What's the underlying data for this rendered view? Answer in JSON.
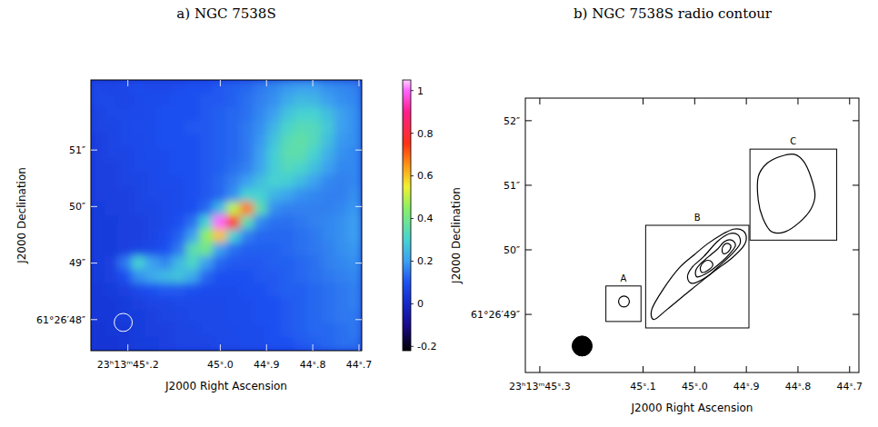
{
  "chart_data": [
    {
      "type": "heatmap",
      "title": "a) NGC 7538S",
      "xlabel": "J2000 Right Ascension",
      "ylabel": "J2000 Declination",
      "xlim": [
        45.28,
        44.694
      ],
      "ylim": [
        47.45,
        52.24
      ],
      "xticks": [
        {
          "value": 45.2,
          "label": "23ʰ13ᵐ45ˢ.2"
        },
        {
          "value": 45.0,
          "label": "45ˢ.0"
        },
        {
          "value": 44.9,
          "label": "44ˢ.9"
        },
        {
          "value": 44.8,
          "label": "44ˢ.8"
        },
        {
          "value": 44.7,
          "label": "44ˢ.7"
        }
      ],
      "yticks": [
        {
          "value": 51,
          "label": "51″"
        },
        {
          "value": 50,
          "label": "50″"
        },
        {
          "value": 49,
          "label": "49″"
        },
        {
          "value": 48,
          "label": "61°26′48″"
        }
      ],
      "cells": [
        [
          0.08,
          0.07,
          0.08,
          0.09,
          0.08,
          0.08,
          0.09,
          0.1,
          0.1,
          0.11,
          0.12,
          0.13,
          0.15,
          0.17,
          0.19,
          0.2,
          0.2,
          0.18,
          0.17,
          0.16
        ],
        [
          0.08,
          0.08,
          0.07,
          0.08,
          0.09,
          0.09,
          0.1,
          0.1,
          0.11,
          0.11,
          0.12,
          0.14,
          0.16,
          0.18,
          0.22,
          0.25,
          0.24,
          0.2,
          0.18,
          0.17
        ],
        [
          0.07,
          0.08,
          0.08,
          0.08,
          0.09,
          0.1,
          0.1,
          0.1,
          0.11,
          0.12,
          0.13,
          0.14,
          0.17,
          0.2,
          0.27,
          0.3,
          0.3,
          0.26,
          0.2,
          0.18
        ],
        [
          0.07,
          0.07,
          0.08,
          0.09,
          0.09,
          0.1,
          0.1,
          0.11,
          0.11,
          0.12,
          0.13,
          0.15,
          0.18,
          0.24,
          0.31,
          0.34,
          0.33,
          0.28,
          0.2,
          0.18
        ],
        [
          0.06,
          0.07,
          0.08,
          0.08,
          0.09,
          0.1,
          0.1,
          0.1,
          0.11,
          0.12,
          0.13,
          0.15,
          0.19,
          0.27,
          0.34,
          0.36,
          0.33,
          0.26,
          0.19,
          0.18
        ],
        [
          0.06,
          0.07,
          0.07,
          0.08,
          0.09,
          0.09,
          0.1,
          0.1,
          0.11,
          0.12,
          0.13,
          0.15,
          0.2,
          0.29,
          0.35,
          0.35,
          0.3,
          0.23,
          0.18,
          0.17
        ],
        [
          0.06,
          0.06,
          0.07,
          0.08,
          0.08,
          0.09,
          0.1,
          0.1,
          0.11,
          0.12,
          0.14,
          0.16,
          0.21,
          0.29,
          0.33,
          0.31,
          0.26,
          0.2,
          0.17,
          0.17
        ],
        [
          0.06,
          0.06,
          0.07,
          0.07,
          0.08,
          0.09,
          0.09,
          0.1,
          0.11,
          0.13,
          0.16,
          0.2,
          0.26,
          0.3,
          0.29,
          0.25,
          0.2,
          0.17,
          0.16,
          0.17
        ],
        [
          0.06,
          0.06,
          0.06,
          0.07,
          0.08,
          0.08,
          0.09,
          0.1,
          0.11,
          0.13,
          0.18,
          0.3,
          0.3,
          0.24,
          0.21,
          0.18,
          0.17,
          0.16,
          0.16,
          0.18
        ],
        [
          0.05,
          0.06,
          0.06,
          0.07,
          0.07,
          0.08,
          0.09,
          0.1,
          0.13,
          0.25,
          0.5,
          0.68,
          0.35,
          0.18,
          0.16,
          0.16,
          0.16,
          0.16,
          0.17,
          0.19
        ],
        [
          0.05,
          0.05,
          0.06,
          0.06,
          0.07,
          0.08,
          0.1,
          0.14,
          0.3,
          1.0,
          0.75,
          0.35,
          0.17,
          0.14,
          0.14,
          0.15,
          0.16,
          0.17,
          0.18,
          0.2
        ],
        [
          0.05,
          0.05,
          0.06,
          0.06,
          0.07,
          0.09,
          0.12,
          0.2,
          0.45,
          0.6,
          0.3,
          0.16,
          0.13,
          0.13,
          0.13,
          0.14,
          0.15,
          0.17,
          0.18,
          0.2
        ],
        [
          0.05,
          0.05,
          0.06,
          0.07,
          0.08,
          0.1,
          0.15,
          0.35,
          0.4,
          0.2,
          0.14,
          0.12,
          0.12,
          0.12,
          0.13,
          0.14,
          0.15,
          0.16,
          0.18,
          0.19
        ],
        [
          0.05,
          0.06,
          0.15,
          0.3,
          0.2,
          0.17,
          0.25,
          0.32,
          0.2,
          0.13,
          0.11,
          0.11,
          0.11,
          0.12,
          0.12,
          0.13,
          0.14,
          0.16,
          0.17,
          0.18
        ],
        [
          0.05,
          0.06,
          0.1,
          0.18,
          0.22,
          0.25,
          0.27,
          0.22,
          0.13,
          0.1,
          0.1,
          0.1,
          0.11,
          0.11,
          0.12,
          0.13,
          0.14,
          0.15,
          0.16,
          0.17
        ],
        [
          0.04,
          0.05,
          0.06,
          0.08,
          0.1,
          0.11,
          0.11,
          0.1,
          0.09,
          0.09,
          0.09,
          0.1,
          0.1,
          0.11,
          0.12,
          0.12,
          0.13,
          0.14,
          0.15,
          0.16
        ],
        [
          0.04,
          0.04,
          0.05,
          0.06,
          0.07,
          0.07,
          0.08,
          0.08,
          0.08,
          0.08,
          0.09,
          0.09,
          0.1,
          0.1,
          0.11,
          0.12,
          0.13,
          0.14,
          0.15,
          0.16
        ],
        [
          0.04,
          0.04,
          0.05,
          0.05,
          0.06,
          0.07,
          0.07,
          0.08,
          0.08,
          0.08,
          0.09,
          0.09,
          0.1,
          0.1,
          0.11,
          0.12,
          0.13,
          0.14,
          0.15,
          0.15
        ],
        [
          0.03,
          0.04,
          0.04,
          0.05,
          0.06,
          0.06,
          0.07,
          0.07,
          0.08,
          0.08,
          0.08,
          0.09,
          0.09,
          0.1,
          0.11,
          0.12,
          0.13,
          0.13,
          0.14,
          0.15
        ],
        [
          0.03,
          0.03,
          0.04,
          0.05,
          0.05,
          0.06,
          0.07,
          0.07,
          0.07,
          0.08,
          0.08,
          0.09,
          0.09,
          0.1,
          0.1,
          0.11,
          0.12,
          0.13,
          0.14,
          0.14
        ]
      ],
      "colorbar": {
        "range": [
          -0.22,
          1.05
        ],
        "ticks": [
          1,
          0.8,
          0.6,
          0.4,
          0.2,
          0,
          -0.2
        ]
      },
      "beam": {
        "ra": 45.21,
        "dec": 47.95,
        "radius": 0.16
      }
    },
    {
      "type": "contour",
      "title": "b) NGC 7538S radio contour",
      "xlabel": "J2000 Right Ascension",
      "ylabel": "J2000 Declination",
      "xlim": [
        45.328,
        44.682
      ],
      "ylim": [
        48.1,
        52.35
      ],
      "xticks": [
        {
          "value": 45.3,
          "label": "23ʰ13ᵐ45ˢ.3"
        },
        {
          "value": 45.1,
          "label": "45ˢ.1"
        },
        {
          "value": 45.0,
          "label": "45ˢ.0"
        },
        {
          "value": 44.9,
          "label": "44ˢ.9"
        },
        {
          "value": 44.8,
          "label": "44ˢ.8"
        },
        {
          "value": 44.7,
          "label": "44ˢ.7"
        }
      ],
      "yticks": [
        {
          "value": 52,
          "label": "52″"
        },
        {
          "value": 51,
          "label": "51″"
        },
        {
          "value": 50,
          "label": "50″"
        },
        {
          "value": 49,
          "label": "61°26′49″"
        }
      ],
      "contours": [
        {
          "ra": [
            45.137,
            45.1296,
            45.1265,
            45.1296,
            45.137,
            45.1444,
            45.1475,
            45.1444
          ],
          "dec": [
            49.285,
            49.26,
            49.2,
            49.14,
            49.115,
            49.14,
            49.2,
            49.26
          ]
        },
        {
          "ra": [
            45.079,
            45.053,
            45.009,
            44.965,
            44.93,
            44.907,
            44.9,
            44.907,
            44.925,
            44.947,
            44.974,
            45.0,
            45.03,
            45.061,
            45.083
          ],
          "dec": [
            48.92,
            49.08,
            49.37,
            49.65,
            49.86,
            50.04,
            50.18,
            50.3,
            50.32,
            50.24,
            50.1,
            49.93,
            49.72,
            49.39,
            49.08
          ]
        },
        {
          "ra": [
            45.005,
            44.977,
            44.947,
            44.925,
            44.912,
            44.916,
            44.933,
            44.956,
            44.982,
            45.005,
            45.014
          ],
          "dec": [
            49.48,
            49.58,
            49.79,
            49.96,
            50.1,
            50.23,
            50.25,
            50.13,
            49.9,
            49.73,
            49.58
          ]
        },
        {
          "ra": [
            44.995,
            44.974,
            44.947,
            44.93,
            44.921,
            44.928,
            44.942,
            44.956,
            44.968,
            44.988,
            44.998
          ],
          "dec": [
            49.58,
            49.65,
            49.82,
            49.96,
            50.07,
            50.15,
            50.13,
            50.01,
            49.93,
            49.79,
            49.68
          ]
        },
        {
          "ra": [
            44.986,
            44.975,
            44.965,
            44.97,
            44.981,
            44.989
          ],
          "dec": [
            49.65,
            49.68,
            49.76,
            49.83,
            49.82,
            49.73
          ]
        },
        {
          "ra": [
            44.944,
            44.935,
            44.93,
            44.937,
            44.944,
            44.947
          ],
          "dec": [
            49.94,
            49.97,
            50.06,
            50.1,
            50.07,
            50.0
          ]
        },
        {
          "ra": [
            44.877,
            44.86,
            44.833,
            44.807,
            44.789,
            44.775,
            44.767,
            44.775,
            44.798,
            44.825,
            44.851,
            44.868,
            44.877
          ],
          "dec": [
            51.13,
            51.34,
            51.45,
            51.48,
            51.37,
            51.13,
            50.85,
            50.63,
            50.42,
            50.28,
            50.28,
            50.49,
            50.77
          ]
        }
      ],
      "boxes": [
        {
          "label": "A",
          "ra": [
            45.172,
            45.104
          ],
          "dec": [
            48.89,
            49.44
          ]
        },
        {
          "label": "B",
          "ra": [
            45.095,
            44.895
          ],
          "dec": [
            48.79,
            50.38
          ]
        },
        {
          "label": "C",
          "ra": [
            44.893,
            44.725
          ],
          "dec": [
            50.15,
            51.56
          ]
        }
      ],
      "beam": {
        "ra": 45.218,
        "dec": 48.51,
        "radius": 0.155
      }
    }
  ]
}
